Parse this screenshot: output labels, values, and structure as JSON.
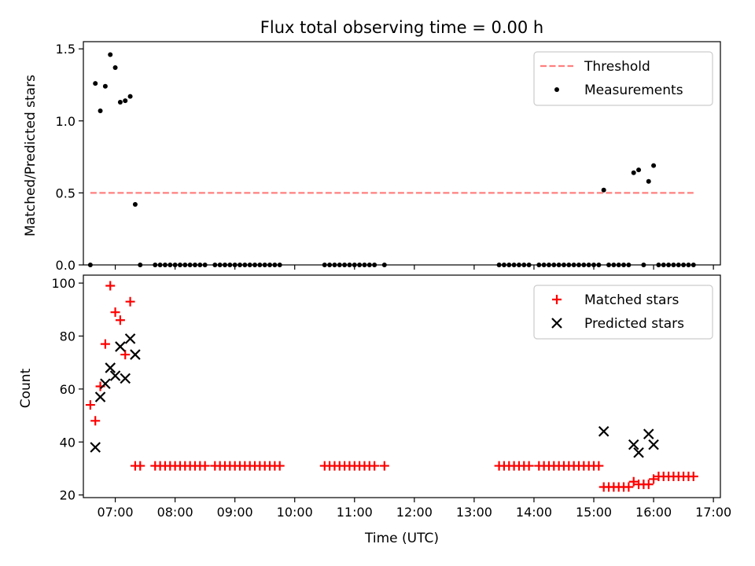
{
  "figure": {
    "title": "Flux total observing time = 0.00 h"
  },
  "chart_data": [
    {
      "type": "scatter",
      "ylabel": "Matched/Predicted stars",
      "xlabel": "",
      "xlim": [
        "06:28",
        "17:07"
      ],
      "ylim": [
        0,
        1.55
      ],
      "x_ticks": [
        "07:00",
        "08:00",
        "09:00",
        "10:00",
        "11:00",
        "12:00",
        "13:00",
        "14:00",
        "15:00",
        "16:00",
        "17:00"
      ],
      "y_ticks": [
        0,
        0.5,
        1.0,
        1.5
      ],
      "y_tick_labels": [
        "0.0",
        "0.5",
        "1.0",
        "1.5"
      ],
      "show_x_tick_labels": false,
      "grid": false,
      "legend": {
        "placement": "top-right",
        "entries": [
          "Threshold",
          "Measurements"
        ]
      },
      "colors": {
        "threshold": "#ff7f7f",
        "measurements": "#000000"
      },
      "series": [
        {
          "name": "Threshold",
          "kind": "line",
          "style": "dashed",
          "x": [
            "06:35",
            "16:40"
          ],
          "y": [
            0.5,
            0.5
          ]
        },
        {
          "name": "Measurements",
          "kind": "scatter",
          "marker": "dot",
          "x": [
            "06:35",
            "06:40",
            "06:45",
            "06:50",
            "06:55",
            "07:00",
            "07:05",
            "07:10",
            "07:15",
            "07:20",
            "07:25",
            "07:40",
            "07:45",
            "07:50",
            "07:55",
            "08:00",
            "08:05",
            "08:10",
            "08:15",
            "08:20",
            "08:25",
            "08:30",
            "08:40",
            "08:45",
            "08:50",
            "08:55",
            "09:00",
            "09:05",
            "09:10",
            "09:15",
            "09:20",
            "09:25",
            "09:30",
            "09:35",
            "09:40",
            "09:45",
            "10:30",
            "10:35",
            "10:40",
            "10:45",
            "10:50",
            "10:55",
            "11:00",
            "11:05",
            "11:10",
            "11:15",
            "11:20",
            "11:30",
            "13:25",
            "13:30",
            "13:35",
            "13:40",
            "13:45",
            "13:50",
            "13:55",
            "14:05",
            "14:10",
            "14:15",
            "14:20",
            "14:25",
            "14:30",
            "14:35",
            "14:40",
            "14:45",
            "14:50",
            "14:55",
            "15:00",
            "15:05",
            "15:10",
            "15:15",
            "15:20",
            "15:25",
            "15:30",
            "15:35",
            "15:40",
            "15:45",
            "15:50",
            "15:55",
            "16:00",
            "16:05",
            "16:10",
            "16:15",
            "16:20",
            "16:25",
            "16:30",
            "16:35",
            "16:40"
          ],
          "y": [
            0,
            1.26,
            1.07,
            1.24,
            1.46,
            1.37,
            1.13,
            1.14,
            1.17,
            0.42,
            0,
            0,
            0,
            0,
            0,
            0,
            0,
            0,
            0,
            0,
            0,
            0,
            0,
            0,
            0,
            0,
            0,
            0,
            0,
            0,
            0,
            0,
            0,
            0,
            0,
            0,
            0,
            0,
            0,
            0,
            0,
            0,
            0,
            0,
            0,
            0,
            0,
            0,
            0,
            0,
            0,
            0,
            0,
            0,
            0,
            0,
            0,
            0,
            0,
            0,
            0,
            0,
            0,
            0,
            0,
            0,
            0,
            0,
            0.52,
            0,
            0,
            0,
            0,
            0,
            0.64,
            0.66,
            0,
            0.58,
            0.69,
            0,
            0,
            0,
            0,
            0,
            0,
            0,
            0
          ]
        }
      ]
    },
    {
      "type": "scatter",
      "ylabel": "Count",
      "xlabel": "Time (UTC)",
      "xlim": [
        "06:28",
        "17:07"
      ],
      "ylim": [
        19,
        103
      ],
      "x_ticks": [
        "07:00",
        "08:00",
        "09:00",
        "10:00",
        "11:00",
        "12:00",
        "13:00",
        "14:00",
        "15:00",
        "16:00",
        "17:00"
      ],
      "y_ticks": [
        20,
        40,
        60,
        80,
        100
      ],
      "y_tick_labels": [
        "20",
        "40",
        "60",
        "80",
        "100"
      ],
      "show_x_tick_labels": true,
      "grid": false,
      "legend": {
        "placement": "top-right",
        "entries": [
          "Matched stars",
          "Predicted stars"
        ]
      },
      "colors": {
        "matched": "#ff0000",
        "predicted": "#000000"
      },
      "series": [
        {
          "name": "Matched stars",
          "kind": "scatter",
          "marker": "plus",
          "x": [
            "06:35",
            "06:40",
            "06:45",
            "06:50",
            "06:55",
            "07:00",
            "07:05",
            "07:10",
            "07:15",
            "07:20",
            "07:25",
            "07:40",
            "07:45",
            "07:50",
            "07:55",
            "08:00",
            "08:05",
            "08:10",
            "08:15",
            "08:20",
            "08:25",
            "08:30",
            "08:40",
            "08:45",
            "08:50",
            "08:55",
            "09:00",
            "09:05",
            "09:10",
            "09:15",
            "09:20",
            "09:25",
            "09:30",
            "09:35",
            "09:40",
            "09:45",
            "10:30",
            "10:35",
            "10:40",
            "10:45",
            "10:50",
            "10:55",
            "11:00",
            "11:05",
            "11:10",
            "11:15",
            "11:20",
            "11:30",
            "13:25",
            "13:30",
            "13:35",
            "13:40",
            "13:45",
            "13:50",
            "13:55",
            "14:05",
            "14:10",
            "14:15",
            "14:20",
            "14:25",
            "14:30",
            "14:35",
            "14:40",
            "14:45",
            "14:50",
            "14:55",
            "15:00",
            "15:05",
            "15:10",
            "15:15",
            "15:20",
            "15:25",
            "15:30",
            "15:35",
            "15:40",
            "15:45",
            "15:50",
            "15:55",
            "16:00",
            "16:05",
            "16:10",
            "16:15",
            "16:20",
            "16:25",
            "16:30",
            "16:35",
            "16:40"
          ],
          "y": [
            54,
            48,
            61,
            77,
            99,
            89,
            86,
            73,
            93,
            31,
            31,
            31,
            31,
            31,
            31,
            31,
            31,
            31,
            31,
            31,
            31,
            31,
            31,
            31,
            31,
            31,
            31,
            31,
            31,
            31,
            31,
            31,
            31,
            31,
            31,
            31,
            31,
            31,
            31,
            31,
            31,
            31,
            31,
            31,
            31,
            31,
            31,
            31,
            31,
            31,
            31,
            31,
            31,
            31,
            31,
            31,
            31,
            31,
            31,
            31,
            31,
            31,
            31,
            31,
            31,
            31,
            31,
            31,
            23,
            23,
            23,
            23,
            23,
            23,
            25,
            24,
            24,
            24,
            26,
            27,
            27,
            27,
            27,
            27,
            27,
            27,
            27
          ]
        },
        {
          "name": "Predicted stars",
          "kind": "scatter",
          "marker": "x",
          "x": [
            "06:40",
            "06:45",
            "06:50",
            "06:55",
            "07:00",
            "07:05",
            "07:10",
            "07:15",
            "07:20",
            "15:10",
            "15:40",
            "15:45",
            "15:55",
            "16:00"
          ],
          "y": [
            38,
            57,
            62,
            68,
            65,
            76,
            64,
            79,
            73,
            44,
            39,
            36,
            43,
            39
          ]
        }
      ]
    }
  ]
}
